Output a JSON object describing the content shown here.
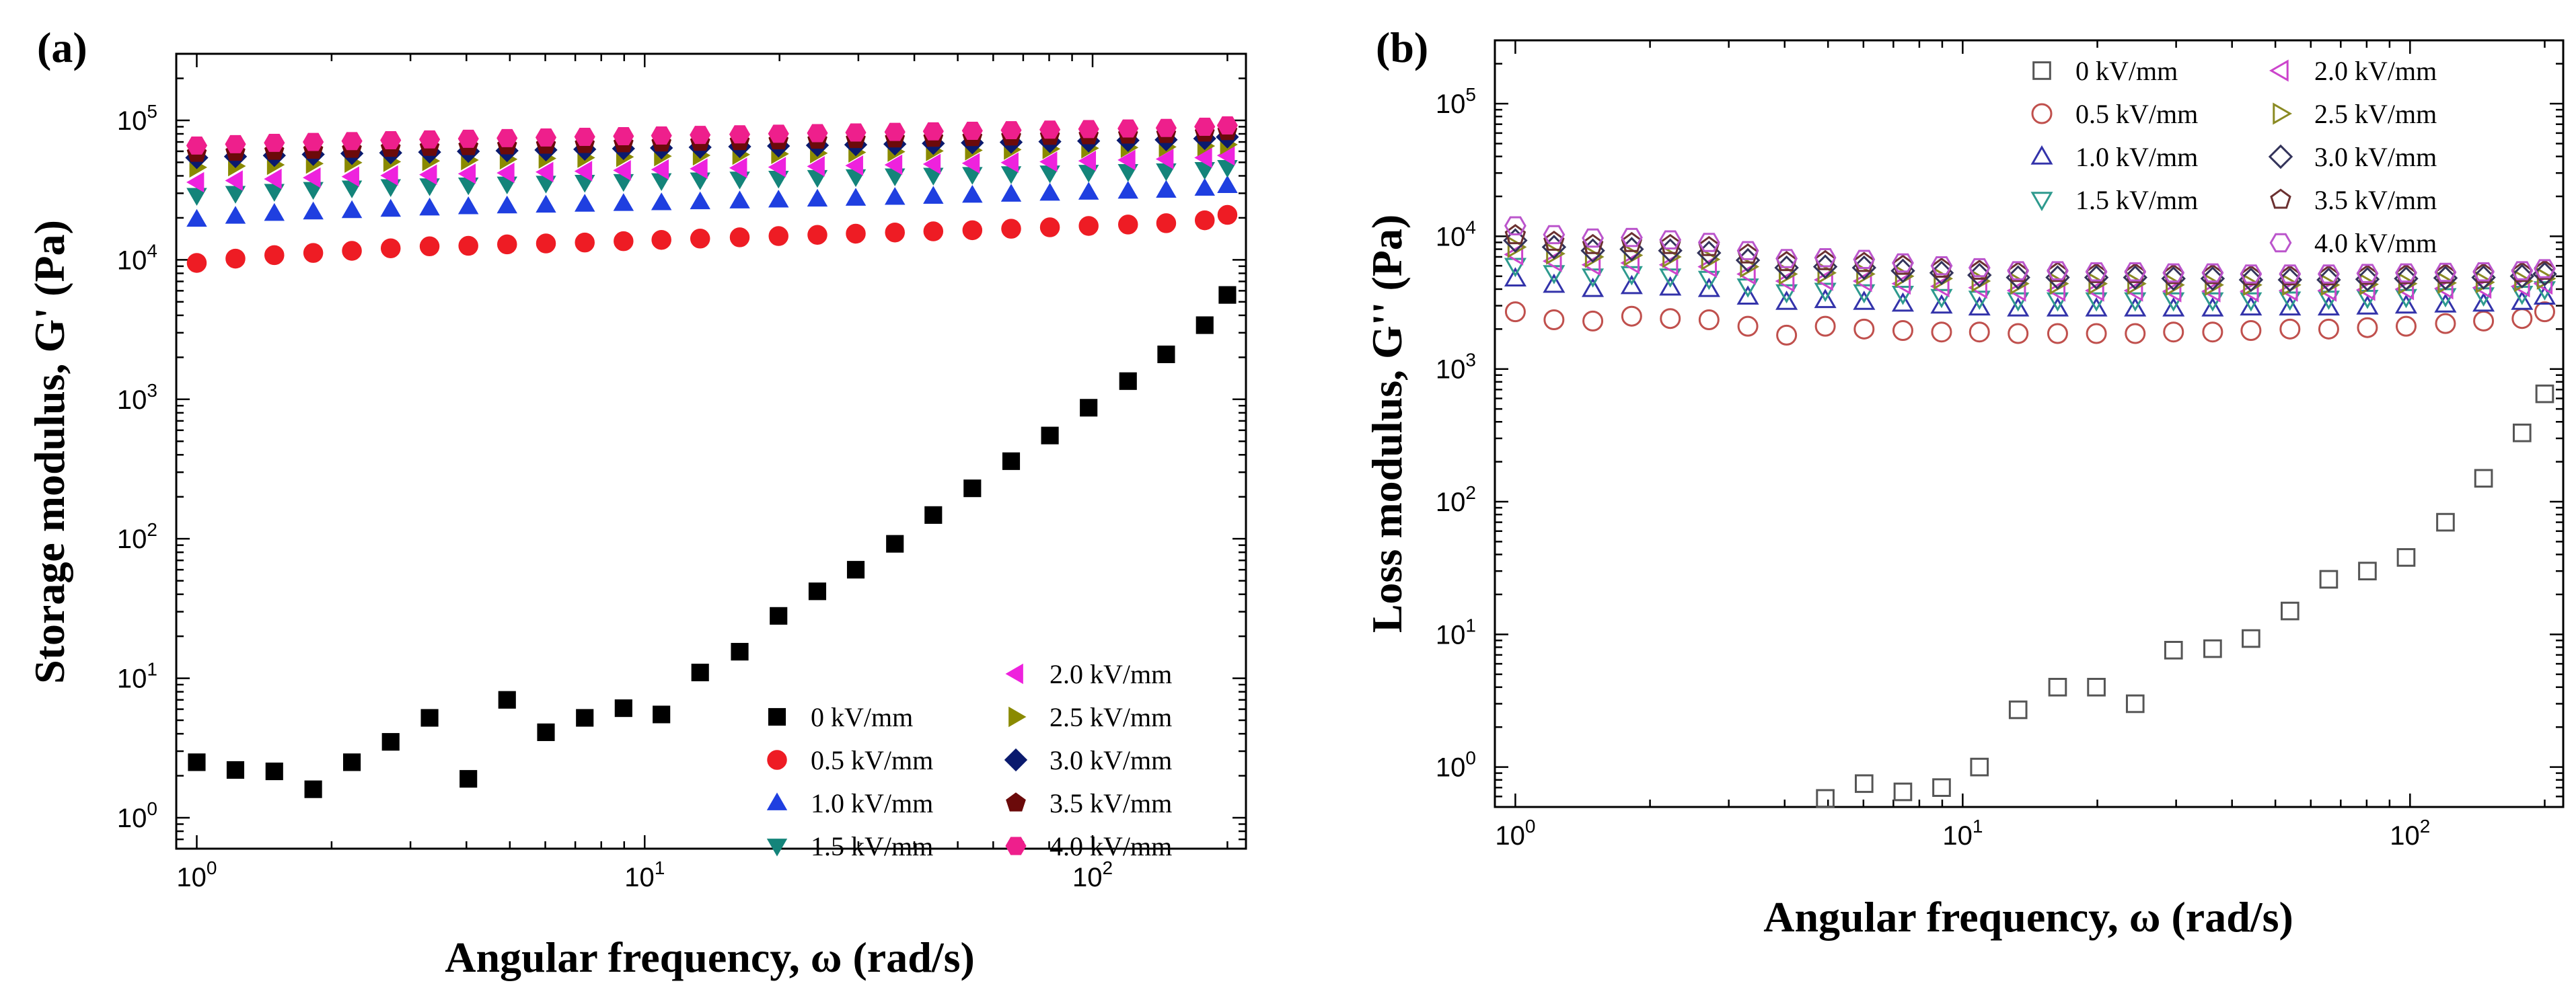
{
  "chart_data": [
    {
      "type": "scatter",
      "panel_label": "(a)",
      "xlabel": "Angular frequency, ω (rad/s)",
      "ylabel": "Storage modulus, G' (Pa)",
      "xscale": "log",
      "yscale": "log",
      "xlim": [
        0.9,
        220
      ],
      "ylim": [
        0.6,
        300000
      ],
      "marker_fill": "filled",
      "legend_location": "lower-right",
      "x_ticks": [
        1,
        10,
        100
      ],
      "x_tick_labels": [
        {
          "b": "10",
          "e": "0"
        },
        {
          "b": "10",
          "e": "1"
        },
        {
          "b": "10",
          "e": "2"
        }
      ],
      "y_ticks": [
        1,
        10,
        100,
        1000,
        10000,
        100000
      ],
      "y_tick_labels": [
        {
          "b": "10",
          "e": "0"
        },
        {
          "b": "10",
          "e": "1"
        },
        {
          "b": "10",
          "e": "2"
        },
        {
          "b": "10",
          "e": "3"
        },
        {
          "b": "10",
          "e": "4"
        },
        {
          "b": "10",
          "e": "5"
        }
      ],
      "x": [
        1.0,
        1.22,
        1.49,
        1.82,
        2.22,
        2.71,
        3.31,
        4.04,
        4.93,
        6.02,
        7.35,
        8.97,
        10.9,
        13.3,
        16.3,
        19.9,
        24.3,
        29.6,
        36.2,
        44.1,
        53.9,
        65.8,
        80.3,
        98.0,
        120,
        146,
        178,
        200
      ],
      "series": [
        {
          "name": "0 kV/mm",
          "marker": "square",
          "color": "#000000",
          "values": [
            2.5,
            2.2,
            2.15,
            1.6,
            2.5,
            3.5,
            5.2,
            1.9,
            7.0,
            4.1,
            5.2,
            6.1,
            5.5,
            11,
            15.5,
            28,
            42,
            60,
            92,
            148,
            230,
            360,
            550,
            870,
            1350,
            2100,
            3400,
            5600
          ]
        },
        {
          "name": "0.5 kV/mm",
          "marker": "circle",
          "color": "#ee1c24",
          "values": [
            9500,
            10200,
            10800,
            11200,
            11600,
            12100,
            12500,
            12600,
            12900,
            13100,
            13300,
            13600,
            13900,
            14200,
            14500,
            14800,
            15100,
            15400,
            15700,
            16000,
            16300,
            16700,
            17100,
            17500,
            17900,
            18300,
            19200,
            21000
          ]
        },
        {
          "name": "1.0 kV/mm",
          "marker": "triangle-up",
          "color": "#1f3fe0",
          "values": [
            19500,
            20500,
            21500,
            22000,
            22500,
            23000,
            23500,
            24000,
            24300,
            24600,
            25000,
            25300,
            25600,
            26000,
            26400,
            26800,
            27200,
            27600,
            28000,
            28500,
            29000,
            29500,
            30000,
            30500,
            31000,
            31500,
            32500,
            34000
          ]
        },
        {
          "name": "1.5 kV/mm",
          "marker": "triangle-down",
          "color": "#14847a",
          "values": [
            29000,
            30000,
            31000,
            32000,
            32800,
            33500,
            34000,
            34500,
            35000,
            35500,
            36000,
            36500,
            37000,
            37500,
            38000,
            38500,
            39000,
            39500,
            40000,
            40500,
            41000,
            41500,
            42000,
            42500,
            43000,
            43500,
            44500,
            46000
          ]
        },
        {
          "name": "2.0 kV/mm",
          "marker": "triangle-left",
          "color": "#ee22dd",
          "values": [
            36000,
            37000,
            38000,
            38800,
            39500,
            40200,
            40800,
            41400,
            42000,
            42600,
            43200,
            43800,
            44400,
            45000,
            45600,
            46200,
            46800,
            47400,
            48000,
            48600,
            49200,
            49800,
            50500,
            51200,
            52000,
            52800,
            54000,
            56000
          ]
        },
        {
          "name": "2.5 kV/mm",
          "marker": "triangle-right",
          "color": "#8a8a00",
          "values": [
            46000,
            47000,
            48000,
            49000,
            49800,
            50500,
            51200,
            51900,
            52600,
            53300,
            54000,
            54700,
            55400,
            56100,
            56800,
            57500,
            58200,
            58900,
            59600,
            60300,
            61000,
            61700,
            62400,
            63100,
            63800,
            64500,
            65500,
            67000
          ]
        },
        {
          "name": "3.0 kV/mm",
          "marker": "diamond",
          "color": "#0a1a6e",
          "values": [
            54000,
            55000,
            56000,
            57000,
            57800,
            58500,
            59200,
            59900,
            60600,
            61300,
            62000,
            62700,
            63400,
            64100,
            64800,
            65500,
            66200,
            66900,
            67600,
            68300,
            69000,
            69700,
            70400,
            71100,
            71800,
            72500,
            74000,
            76000
          ]
        },
        {
          "name": "3.5 kV/mm",
          "marker": "pentagon",
          "color": "#6b0a0a",
          "values": [
            58000,
            59000,
            60000,
            61000,
            62000,
            63000,
            64000,
            64800,
            65600,
            66400,
            67200,
            68000,
            68800,
            69600,
            70400,
            71200,
            72000,
            72800,
            73600,
            74400,
            75200,
            76000,
            76800,
            77600,
            78400,
            79200,
            81000,
            83000
          ]
        },
        {
          "name": "4.0 kV/mm",
          "marker": "hexagon",
          "color": "#ee1f8c",
          "values": [
            66000,
            67500,
            69000,
            70000,
            71000,
            72000,
            73000,
            73800,
            74600,
            75400,
            76200,
            77000,
            77800,
            78600,
            79400,
            80200,
            81000,
            81800,
            82600,
            83400,
            84200,
            85000,
            85800,
            86600,
            87400,
            88200,
            90000,
            92000
          ]
        }
      ]
    },
    {
      "type": "scatter",
      "panel_label": "(b)",
      "xlabel": "Angular frequency, ω (rad/s)",
      "ylabel": "Loss modulus, G'' (Pa)",
      "xscale": "log",
      "yscale": "log",
      "xlim": [
        0.9,
        220
      ],
      "ylim": [
        0.5,
        300000
      ],
      "marker_fill": "hollow",
      "legend_location": "top-right",
      "x_ticks": [
        1,
        10,
        100
      ],
      "x_tick_labels": [
        {
          "b": "10",
          "e": "0"
        },
        {
          "b": "10",
          "e": "1"
        },
        {
          "b": "10",
          "e": "2"
        }
      ],
      "y_ticks": [
        1,
        10,
        100,
        1000,
        10000,
        100000
      ],
      "y_tick_labels": [
        {
          "b": "10",
          "e": "0"
        },
        {
          "b": "10",
          "e": "1"
        },
        {
          "b": "10",
          "e": "2"
        },
        {
          "b": "10",
          "e": "3"
        },
        {
          "b": "10",
          "e": "4"
        },
        {
          "b": "10",
          "e": "5"
        }
      ],
      "x": [
        1.0,
        1.22,
        1.49,
        1.82,
        2.22,
        2.71,
        3.31,
        4.04,
        4.93,
        6.02,
        7.35,
        8.97,
        10.9,
        13.3,
        16.3,
        19.9,
        24.3,
        29.6,
        36.2,
        44.1,
        53.9,
        65.8,
        80.3,
        98.0,
        120,
        146,
        178,
        200
      ],
      "series": [
        {
          "name": "0 kV/mm",
          "marker": "square",
          "color": "#555555",
          "values": [
            null,
            null,
            null,
            null,
            null,
            null,
            null,
            null,
            0.58,
            0.75,
            0.65,
            0.7,
            1.0,
            2.7,
            4.0,
            4.0,
            3.0,
            7.6,
            7.8,
            9.3,
            15,
            26,
            30,
            38,
            70,
            150,
            330,
            650
          ]
        },
        {
          "name": "0.5 kV/mm",
          "marker": "circle",
          "color": "#c0504d",
          "values": [
            2700,
            2350,
            2300,
            2500,
            2400,
            2350,
            2100,
            1800,
            2100,
            2000,
            1950,
            1900,
            1900,
            1850,
            1850,
            1850,
            1850,
            1900,
            1900,
            1950,
            2000,
            2000,
            2050,
            2100,
            2200,
            2300,
            2400,
            2700
          ]
        },
        {
          "name": "1.0 kV/mm",
          "marker": "triangle-up",
          "color": "#3333aa",
          "values": [
            4800,
            4300,
            4000,
            4200,
            4100,
            4000,
            3500,
            3200,
            3300,
            3200,
            3100,
            3000,
            2900,
            2850,
            2850,
            2850,
            2850,
            2850,
            2850,
            2900,
            2900,
            2900,
            2950,
            3000,
            3050,
            3100,
            3200,
            3500
          ]
        },
        {
          "name": "1.5 kV/mm",
          "marker": "triangle-down",
          "color": "#2e9a8e",
          "values": [
            6000,
            5300,
            5000,
            5200,
            5000,
            4800,
            4200,
            3800,
            3900,
            3800,
            3700,
            3500,
            3400,
            3300,
            3300,
            3300,
            3300,
            3300,
            3300,
            3300,
            3350,
            3400,
            3450,
            3500,
            3550,
            3600,
            3700,
            4000
          ]
        },
        {
          "name": "2.0 kV/mm",
          "marker": "triangle-left",
          "color": "#cc44cc",
          "values": [
            7300,
            6500,
            6100,
            6300,
            6100,
            5900,
            5200,
            4600,
            4700,
            4600,
            4400,
            4200,
            4100,
            3900,
            3900,
            3900,
            3900,
            3850,
            3850,
            3850,
            3900,
            3900,
            3950,
            4000,
            4050,
            4100,
            4200,
            4400
          ]
        },
        {
          "name": "2.5 kV/mm",
          "marker": "triangle-right",
          "color": "#8a8a22",
          "values": [
            8300,
            7400,
            7000,
            7200,
            7000,
            6700,
            5900,
            5200,
            5300,
            5200,
            5000,
            4800,
            4600,
            4400,
            4400,
            4400,
            4400,
            4300,
            4300,
            4300,
            4300,
            4300,
            4350,
            4400,
            4450,
            4500,
            4600,
            4800
          ]
        },
        {
          "name": "3.0 kV/mm",
          "marker": "diamond",
          "color": "#33335a",
          "values": [
            9300,
            8300,
            7800,
            8000,
            7800,
            7500,
            6600,
            5800,
            5900,
            5800,
            5500,
            5300,
            5100,
            4900,
            4900,
            4900,
            4900,
            4800,
            4800,
            4700,
            4700,
            4700,
            4750,
            4800,
            4850,
            4900,
            5000,
            5200
          ]
        },
        {
          "name": "3.5 kV/mm",
          "marker": "pentagon",
          "color": "#6b3030",
          "values": [
            10200,
            9100,
            8600,
            8900,
            8600,
            8300,
            7300,
            6400,
            6500,
            6300,
            6000,
            5700,
            5500,
            5300,
            5300,
            5200,
            5200,
            5100,
            5100,
            5000,
            5000,
            5000,
            5050,
            5100,
            5150,
            5200,
            5300,
            5500
          ]
        },
        {
          "name": "4.0 kV/mm",
          "marker": "hexagon",
          "color": "#bb55cc",
          "values": [
            12000,
            10300,
            9700,
            9800,
            9400,
            9000,
            7800,
            6800,
            6900,
            6700,
            6300,
            6000,
            5800,
            5500,
            5500,
            5400,
            5400,
            5300,
            5300,
            5200,
            5200,
            5200,
            5250,
            5300,
            5350,
            5400,
            5500,
            5700
          ]
        }
      ]
    }
  ]
}
